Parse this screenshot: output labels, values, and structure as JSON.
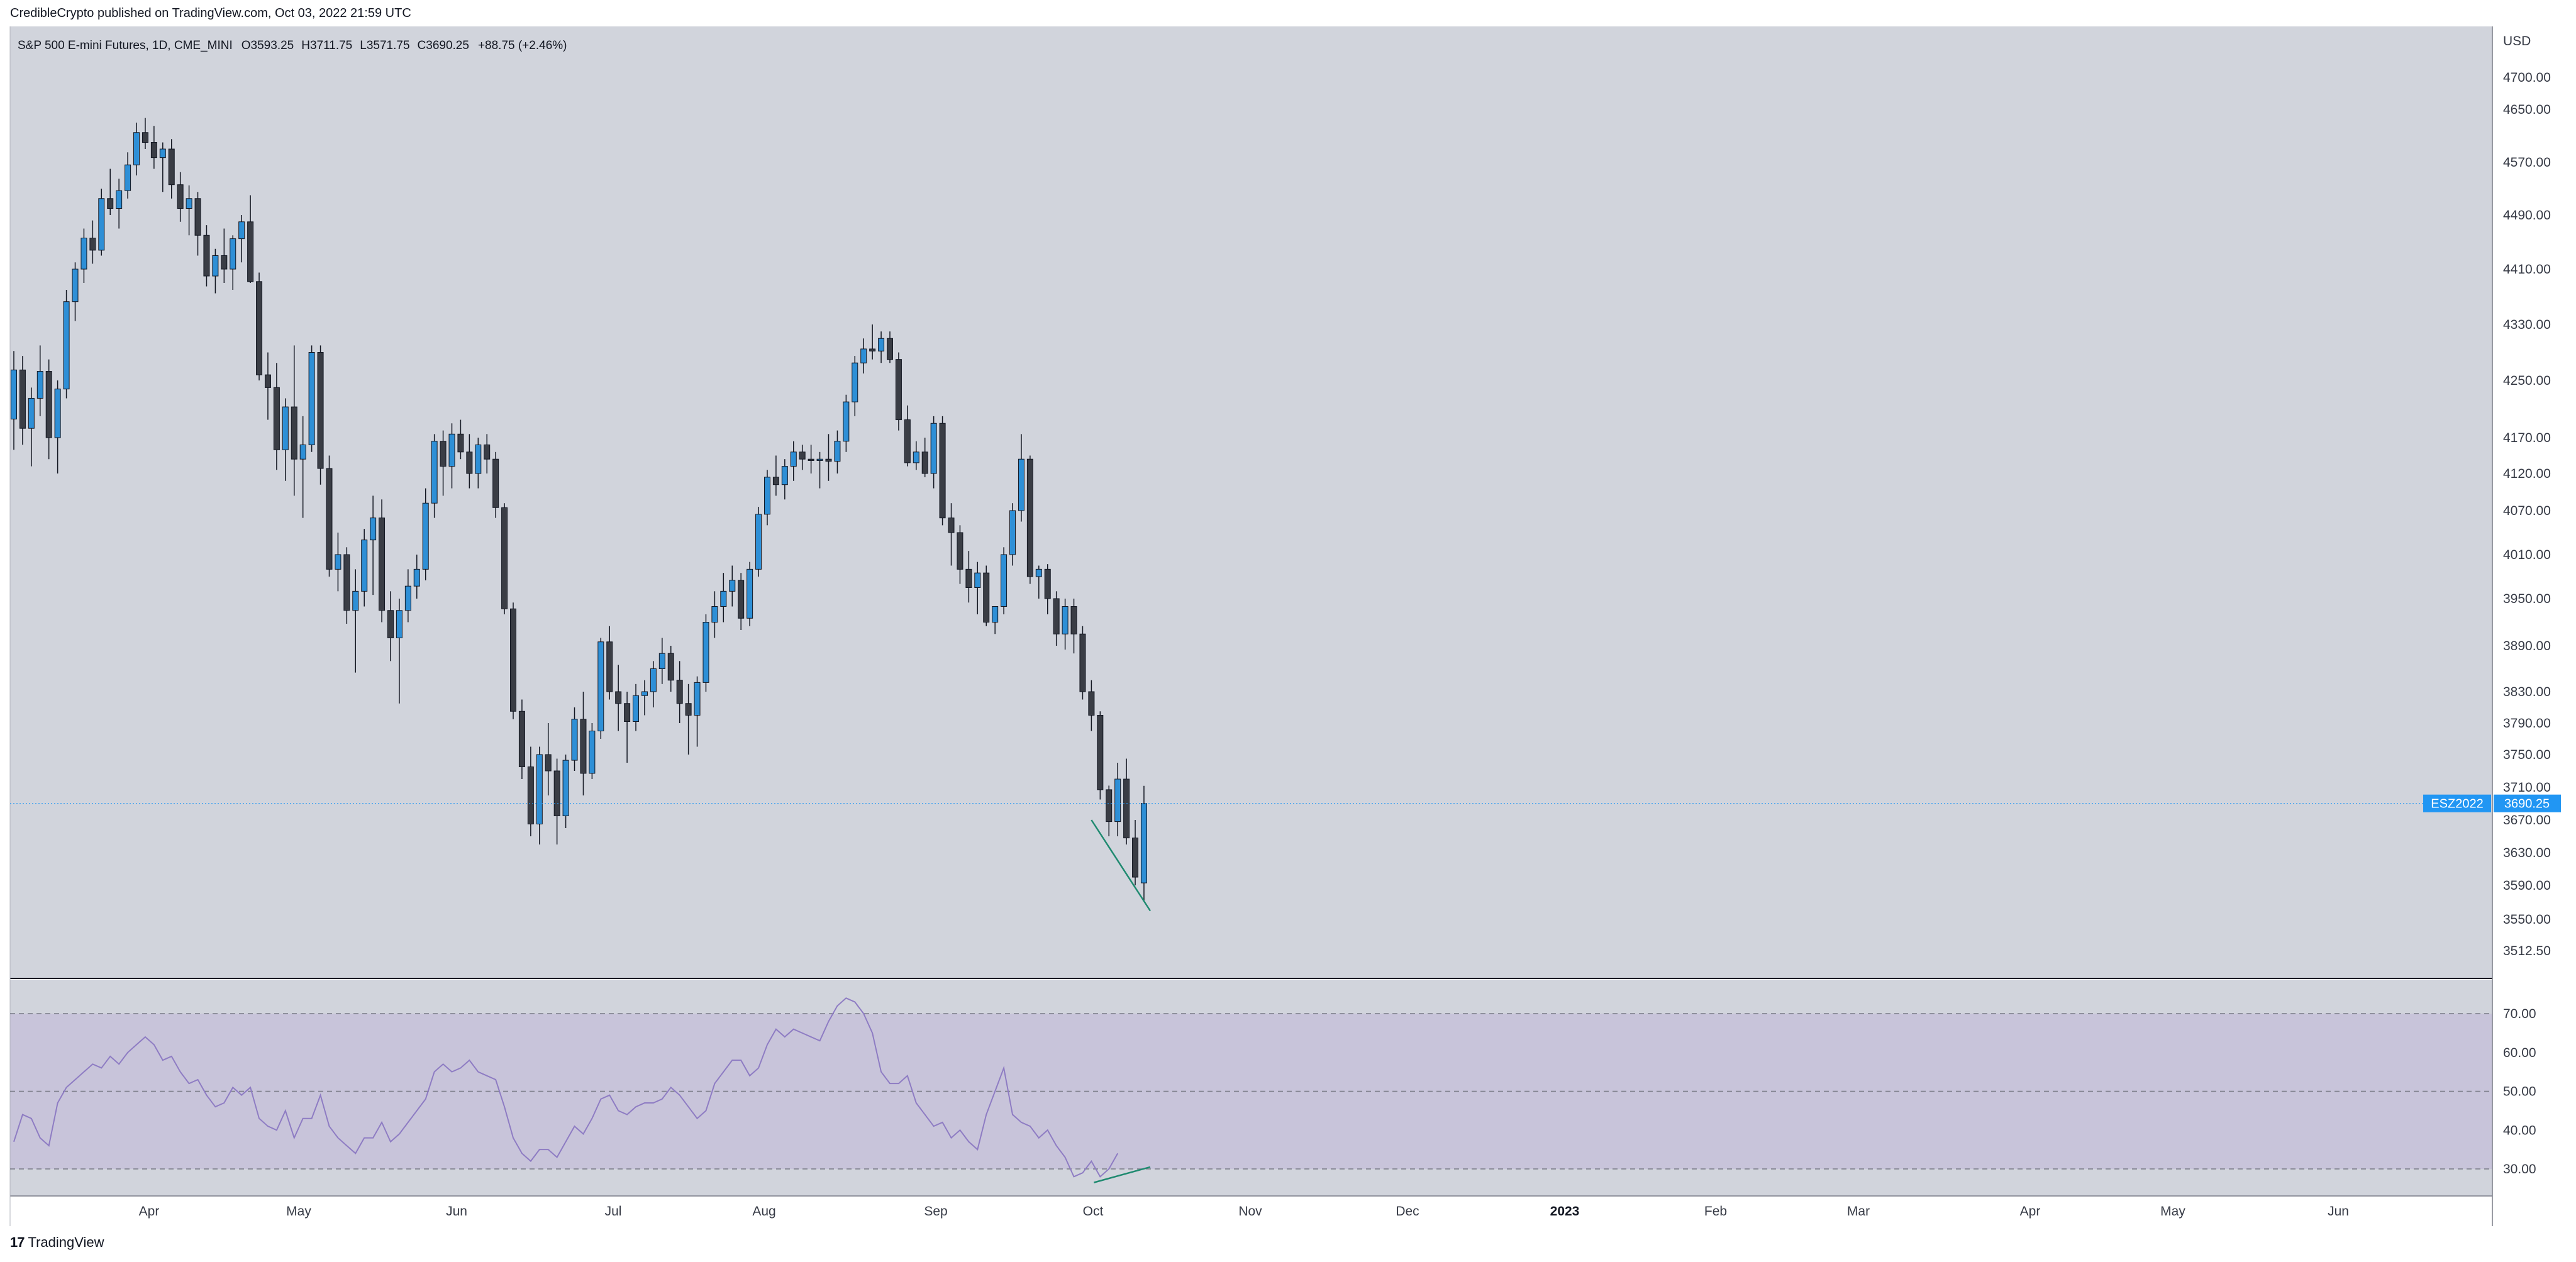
{
  "header": {
    "published": "CredibleCrypto published on TradingView.com, Oct 03, 2022 21:59 UTC"
  },
  "footer": {
    "brand_mark": "17",
    "brand": "TradingView"
  },
  "colors": {
    "bull": "#2e8fd6",
    "bear": "#3a3d45",
    "pane_bg": "#d1d4dc",
    "rsi_band": "#c8c4da",
    "rsi_line": "#8e7cc3",
    "price_line": "#2196f3",
    "trend": "#1f8a70"
  },
  "chart_data": [
    {
      "type": "candlestick",
      "legend": {
        "symbol": "S&P 500 E-mini Futures, 1D, CME_MINI",
        "o_label": "O",
        "o": "3593.25",
        "h_label": "H",
        "h": "3711.75",
        "l_label": "L",
        "l": "3571.75",
        "c_label": "C",
        "c": "3690.25",
        "change": "+88.75 (+2.46%)"
      },
      "currency": "USD",
      "y_ticks": [
        "4700.00",
        "4650.00",
        "4570.00",
        "4490.00",
        "4410.00",
        "4330.00",
        "4250.00",
        "4170.00",
        "4120.00",
        "4070.00",
        "4010.00",
        "3950.00",
        "3890.00",
        "3830.00",
        "3790.00",
        "3750.00",
        "3710.00",
        "3670.00",
        "3630.00",
        "3590.00",
        "3550.00",
        "3512.50"
      ],
      "x_ticks": [
        "Apr",
        "May",
        "Jun",
        "Jul",
        "Aug",
        "Sep",
        "Oct",
        "Nov",
        "Dec",
        "2023",
        "Feb",
        "Mar",
        "Apr",
        "May",
        "Jun"
      ],
      "last_price": {
        "symbol": "ESZ2022",
        "value": "3690.25"
      },
      "ohlc": [
        [
          4196,
          4292,
          4153,
          4265
        ],
        [
          4265,
          4285,
          4160,
          4183
        ],
        [
          4183,
          4240,
          4130,
          4225
        ],
        [
          4225,
          4300,
          4200,
          4263
        ],
        [
          4263,
          4280,
          4140,
          4170
        ],
        [
          4170,
          4250,
          4120,
          4238
        ],
        [
          4238,
          4380,
          4225,
          4363
        ],
        [
          4363,
          4420,
          4335,
          4410
        ],
        [
          4410,
          4470,
          4390,
          4456
        ],
        [
          4456,
          4482,
          4418,
          4438
        ],
        [
          4438,
          4530,
          4430,
          4515
        ],
        [
          4515,
          4560,
          4490,
          4500
        ],
        [
          4500,
          4545,
          4470,
          4527
        ],
        [
          4527,
          4585,
          4515,
          4566
        ],
        [
          4566,
          4630,
          4550,
          4615
        ],
        [
          4615,
          4637,
          4590,
          4600
        ],
        [
          4600,
          4625,
          4560,
          4577
        ],
        [
          4577,
          4600,
          4525,
          4590
        ],
        [
          4590,
          4605,
          4515,
          4536
        ],
        [
          4536,
          4555,
          4480,
          4500
        ],
        [
          4500,
          4535,
          4460,
          4515
        ],
        [
          4515,
          4525,
          4430,
          4460
        ],
        [
          4460,
          4475,
          4385,
          4400
        ],
        [
          4400,
          4440,
          4375,
          4430
        ],
        [
          4430,
          4470,
          4390,
          4410
        ],
        [
          4410,
          4460,
          4380,
          4455
        ],
        [
          4455,
          4490,
          4420,
          4480
        ],
        [
          4480,
          4520,
          4390,
          4392
        ],
        [
          4392,
          4405,
          4250,
          4258
        ],
        [
          4258,
          4290,
          4195,
          4240
        ],
        [
          4240,
          4275,
          4125,
          4153
        ],
        [
          4153,
          4225,
          4110,
          4213
        ],
        [
          4213,
          4300,
          4090,
          4140
        ],
        [
          4140,
          4200,
          4060,
          4160
        ],
        [
          4160,
          4300,
          4150,
          4290
        ],
        [
          4290,
          4300,
          4105,
          4127
        ],
        [
          4127,
          4145,
          3980,
          3990
        ],
        [
          3990,
          4040,
          3960,
          4010
        ],
        [
          4010,
          4020,
          3918,
          3935
        ],
        [
          3935,
          3990,
          3855,
          3960
        ],
        [
          3960,
          4045,
          3940,
          4030
        ],
        [
          4030,
          4090,
          3955,
          4060
        ],
        [
          4060,
          4085,
          3920,
          3935
        ],
        [
          3935,
          3960,
          3870,
          3900
        ],
        [
          3900,
          3950,
          3815,
          3935
        ],
        [
          3935,
          3990,
          3920,
          3967
        ],
        [
          3967,
          4010,
          3950,
          3990
        ],
        [
          3990,
          4100,
          3975,
          4080
        ],
        [
          4080,
          4175,
          4060,
          4165
        ],
        [
          4165,
          4180,
          4090,
          4130
        ],
        [
          4130,
          4190,
          4100,
          4175
        ],
        [
          4175,
          4195,
          4140,
          4150
        ],
        [
          4150,
          4175,
          4100,
          4120
        ],
        [
          4120,
          4170,
          4100,
          4160
        ],
        [
          4160,
          4175,
          4120,
          4140
        ],
        [
          4140,
          4150,
          4060,
          4074
        ],
        [
          4074,
          4080,
          3930,
          3937
        ],
        [
          3937,
          3945,
          3795,
          3805
        ],
        [
          3805,
          3820,
          3720,
          3735
        ],
        [
          3735,
          3760,
          3650,
          3665
        ],
        [
          3665,
          3760,
          3640,
          3750
        ],
        [
          3750,
          3790,
          3700,
          3730
        ],
        [
          3730,
          3745,
          3640,
          3675
        ],
        [
          3675,
          3750,
          3660,
          3743
        ],
        [
          3743,
          3810,
          3730,
          3795
        ],
        [
          3795,
          3830,
          3700,
          3727
        ],
        [
          3727,
          3790,
          3720,
          3780
        ],
        [
          3780,
          3900,
          3770,
          3895
        ],
        [
          3895,
          3915,
          3820,
          3830
        ],
        [
          3830,
          3865,
          3780,
          3815
        ],
        [
          3815,
          3830,
          3740,
          3792
        ],
        [
          3792,
          3840,
          3780,
          3825
        ],
        [
          3825,
          3845,
          3800,
          3830
        ],
        [
          3830,
          3870,
          3810,
          3860
        ],
        [
          3860,
          3900,
          3840,
          3880
        ],
        [
          3880,
          3890,
          3830,
          3845
        ],
        [
          3845,
          3870,
          3790,
          3815
        ],
        [
          3815,
          3840,
          3750,
          3800
        ],
        [
          3800,
          3850,
          3760,
          3842
        ],
        [
          3842,
          3930,
          3830,
          3920
        ],
        [
          3920,
          3960,
          3900,
          3940
        ],
        [
          3940,
          3985,
          3920,
          3960
        ],
        [
          3960,
          3995,
          3940,
          3975
        ],
        [
          3975,
          3985,
          3910,
          3925
        ],
        [
          3925,
          4000,
          3915,
          3990
        ],
        [
          3990,
          4075,
          3980,
          4065
        ],
        [
          4065,
          4125,
          4050,
          4115
        ],
        [
          4115,
          4145,
          4090,
          4105
        ],
        [
          4105,
          4140,
          4085,
          4130
        ],
        [
          4130,
          4165,
          4110,
          4150
        ],
        [
          4150,
          4160,
          4125,
          4140
        ],
        [
          4140,
          4160,
          4120,
          4138
        ],
        [
          4138,
          4150,
          4100,
          4140
        ],
        [
          4140,
          4175,
          4110,
          4137
        ],
        [
          4137,
          4180,
          4120,
          4165
        ],
        [
          4165,
          4230,
          4150,
          4220
        ],
        [
          4220,
          4285,
          4200,
          4275
        ],
        [
          4275,
          4310,
          4260,
          4295
        ],
        [
          4295,
          4330,
          4280,
          4292
        ],
        [
          4292,
          4320,
          4275,
          4310
        ],
        [
          4310,
          4320,
          4275,
          4280
        ],
        [
          4280,
          4290,
          4180,
          4195
        ],
        [
          4195,
          4215,
          4130,
          4135
        ],
        [
          4135,
          4165,
          4125,
          4150
        ],
        [
          4150,
          4170,
          4115,
          4120
        ],
        [
          4120,
          4200,
          4100,
          4190
        ],
        [
          4190,
          4200,
          4050,
          4060
        ],
        [
          4060,
          4080,
          3995,
          4040
        ],
        [
          4040,
          4050,
          3970,
          3990
        ],
        [
          3990,
          4015,
          3945,
          3965
        ],
        [
          3965,
          4000,
          3930,
          3985
        ],
        [
          3985,
          3995,
          3915,
          3920
        ],
        [
          3920,
          3940,
          3905,
          3940
        ],
        [
          3940,
          4020,
          3930,
          4010
        ],
        [
          4010,
          4080,
          3995,
          4070
        ],
        [
          4070,
          4175,
          4055,
          4140
        ],
        [
          4140,
          4145,
          3970,
          3980
        ],
        [
          3980,
          3995,
          3950,
          3990
        ],
        [
          3990,
          3997,
          3930,
          3950
        ],
        [
          3950,
          3960,
          3890,
          3905
        ],
        [
          3905,
          3950,
          3885,
          3940
        ],
        [
          3940,
          3950,
          3880,
          3905
        ],
        [
          3905,
          3915,
          3820,
          3830
        ],
        [
          3830,
          3845,
          3780,
          3800
        ],
        [
          3800,
          3805,
          3695,
          3707
        ],
        [
          3707,
          3712,
          3650,
          3668
        ],
        [
          3668,
          3740,
          3650,
          3720
        ],
        [
          3720,
          3745,
          3640,
          3648
        ],
        [
          3648,
          3670,
          3590,
          3600
        ],
        [
          3593,
          3711.75,
          3571.75,
          3690.25
        ]
      ]
    },
    {
      "type": "line",
      "name": "RSI",
      "y_ticks": [
        "70.00",
        "60.00",
        "50.00",
        "40.00",
        "30.00"
      ],
      "levels": [
        70,
        50,
        30
      ],
      "ylim": [
        24,
        76
      ],
      "values": [
        37,
        44,
        43,
        38,
        36,
        47,
        51,
        53,
        55,
        57,
        56,
        59,
        57,
        60,
        62,
        64,
        62,
        58,
        59,
        55,
        52,
        53,
        49,
        46,
        47,
        51,
        49,
        51,
        43,
        41,
        40,
        45,
        38,
        43,
        43,
        49,
        41,
        38,
        36,
        34,
        38,
        38,
        42,
        37,
        39,
        42,
        45,
        48,
        55,
        57,
        55,
        56,
        58,
        55,
        54,
        53,
        46,
        38,
        34,
        32,
        35,
        35,
        33,
        37,
        41,
        39,
        43,
        48,
        49,
        45,
        44,
        46,
        47,
        47,
        48,
        51,
        49,
        46,
        43,
        45,
        52,
        55,
        58,
        58,
        54,
        56,
        62,
        66,
        64,
        66,
        65,
        64,
        63,
        68,
        72,
        74,
        73,
        70,
        65,
        55,
        52,
        52,
        54,
        47,
        44,
        41,
        42,
        38,
        40,
        37,
        35,
        44,
        50,
        56,
        44,
        42,
        41,
        38,
        40,
        36,
        33,
        28,
        29,
        32,
        28,
        30,
        34
      ]
    }
  ]
}
